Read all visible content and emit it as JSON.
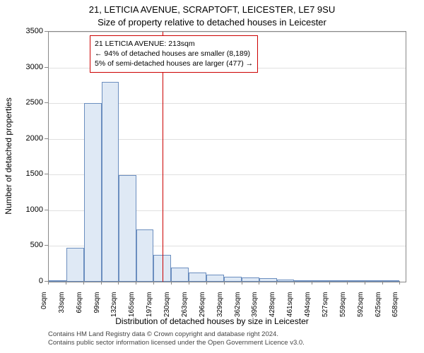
{
  "title": "21, LETICIA AVENUE, SCRAPTOFT, LEICESTER, LE7 9SU",
  "subtitle": "Size of property relative to detached houses in Leicester",
  "y_label": "Number of detached properties",
  "x_label": "Distribution of detached houses by size in Leicester",
  "chart": {
    "type": "histogram",
    "ylim": [
      0,
      3500
    ],
    "ytick_step": 500,
    "y_ticks": [
      0,
      500,
      1000,
      1500,
      2000,
      2500,
      3000,
      3500
    ],
    "x_ticks": [
      "0sqm",
      "33sqm",
      "66sqm",
      "99sqm",
      "132sqm",
      "165sqm",
      "197sqm",
      "230sqm",
      "263sqm",
      "296sqm",
      "329sqm",
      "362sqm",
      "395sqm",
      "428sqm",
      "461sqm",
      "494sqm",
      "527sqm",
      "559sqm",
      "592sqm",
      "625sqm",
      "658sqm"
    ],
    "x_tick_step": 33,
    "x_max": 670,
    "marker_value": 213,
    "bar_fill": "#dfe9f5",
    "bar_stroke": "#6b8ebf",
    "marker_color": "#cc0000",
    "grid_color": "#e0e0e0",
    "axis_color": "#888888",
    "background": "#ffffff",
    "title_fontsize": 13,
    "label_fontsize": 12,
    "tick_fontsize": 11,
    "bars": [
      {
        "x": 33,
        "count": 10
      },
      {
        "x": 66,
        "count": 470
      },
      {
        "x": 99,
        "count": 2500
      },
      {
        "x": 132,
        "count": 2800
      },
      {
        "x": 165,
        "count": 1490
      },
      {
        "x": 197,
        "count": 730
      },
      {
        "x": 230,
        "count": 380
      },
      {
        "x": 263,
        "count": 200
      },
      {
        "x": 296,
        "count": 130
      },
      {
        "x": 329,
        "count": 95
      },
      {
        "x": 362,
        "count": 70
      },
      {
        "x": 395,
        "count": 60
      },
      {
        "x": 428,
        "count": 45
      },
      {
        "x": 461,
        "count": 30
      },
      {
        "x": 494,
        "count": 15
      },
      {
        "x": 527,
        "count": 10
      },
      {
        "x": 559,
        "count": 8
      },
      {
        "x": 592,
        "count": 6
      },
      {
        "x": 625,
        "count": 5
      },
      {
        "x": 658,
        "count": 4
      }
    ]
  },
  "annotation": {
    "line1": "21 LETICIA AVENUE: 213sqm",
    "line2": "← 94% of detached houses are smaller (8,189)",
    "line3": "5% of semi-detached houses are larger (477) →"
  },
  "footer": {
    "line1": "Contains HM Land Registry data © Crown copyright and database right 2024.",
    "line2": "Contains public sector information licensed under the Open Government Licence v3.0."
  }
}
